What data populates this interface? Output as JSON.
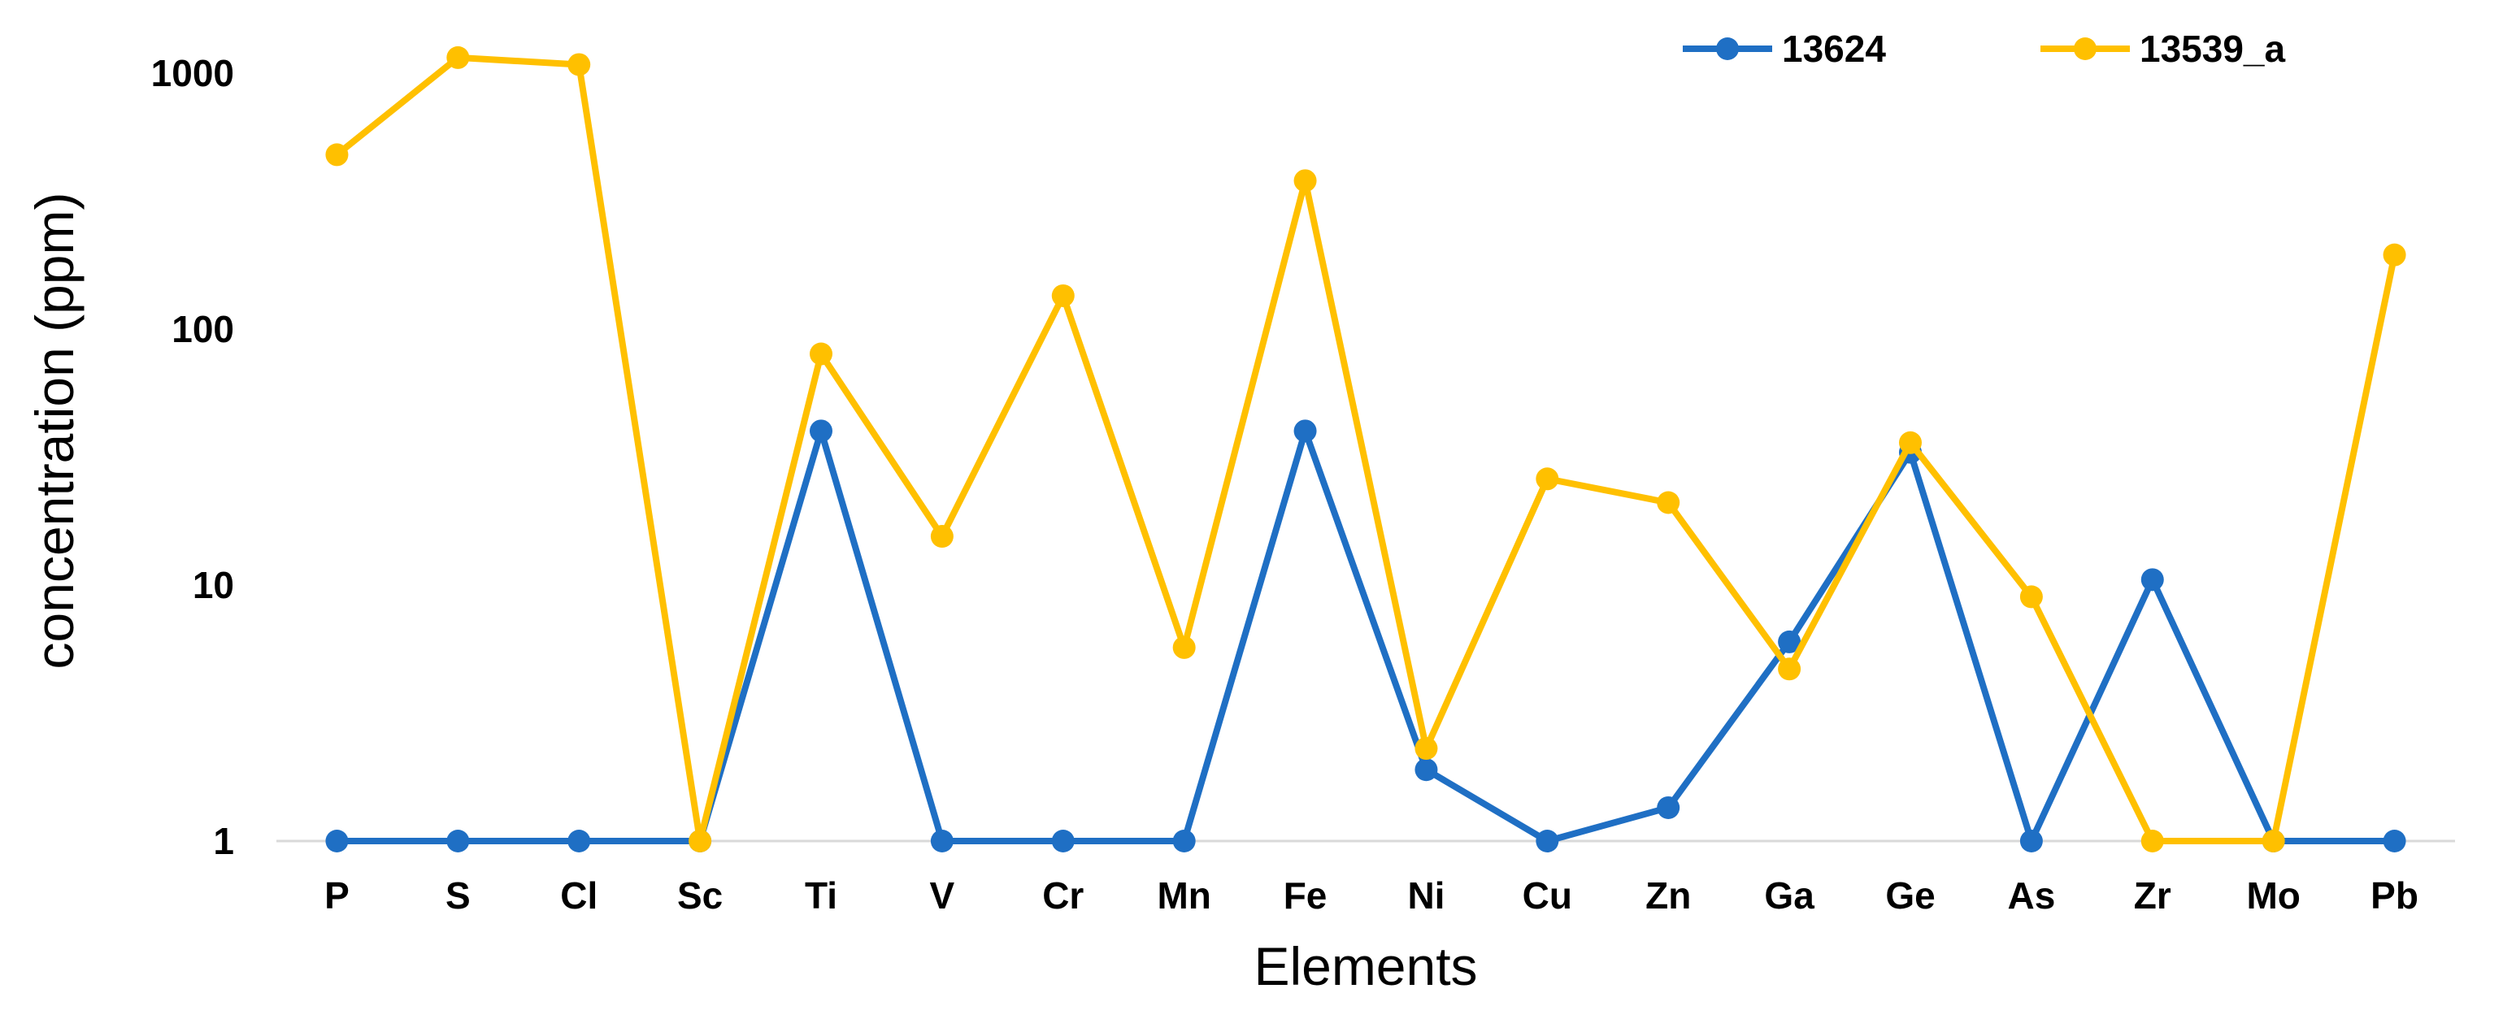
{
  "chart_data": {
    "type": "line",
    "title": "",
    "xlabel": "Elements",
    "ylabel": "concentration (ppm)",
    "yscale": "log",
    "ylim": [
      1,
      1500
    ],
    "yticks": [
      "1",
      "10",
      "100",
      "1000"
    ],
    "grid": false,
    "legend_position": "top-right",
    "categories": [
      "P",
      "S",
      "Cl",
      "Sc",
      "Ti",
      "V",
      "Cr",
      "Mn",
      "Fe",
      "Ni",
      "Cu",
      "Zn",
      "Ga",
      "Ge",
      "As",
      "Zr",
      "Mo",
      "Pb"
    ],
    "series": [
      {
        "name": "13624",
        "color": "#1f6fc4",
        "values": [
          1,
          1,
          1,
          1,
          40,
          1,
          1,
          1,
          40,
          1.9,
          1,
          1.35,
          6,
          33,
          1,
          10.5,
          1,
          1
        ]
      },
      {
        "name": "13539_a",
        "color": "#ffc000",
        "values": [
          480,
          1150,
          1080,
          1,
          80,
          15.5,
          135,
          5.7,
          380,
          2.3,
          26,
          21,
          4.7,
          36,
          9,
          1,
          1,
          195
        ]
      }
    ]
  }
}
